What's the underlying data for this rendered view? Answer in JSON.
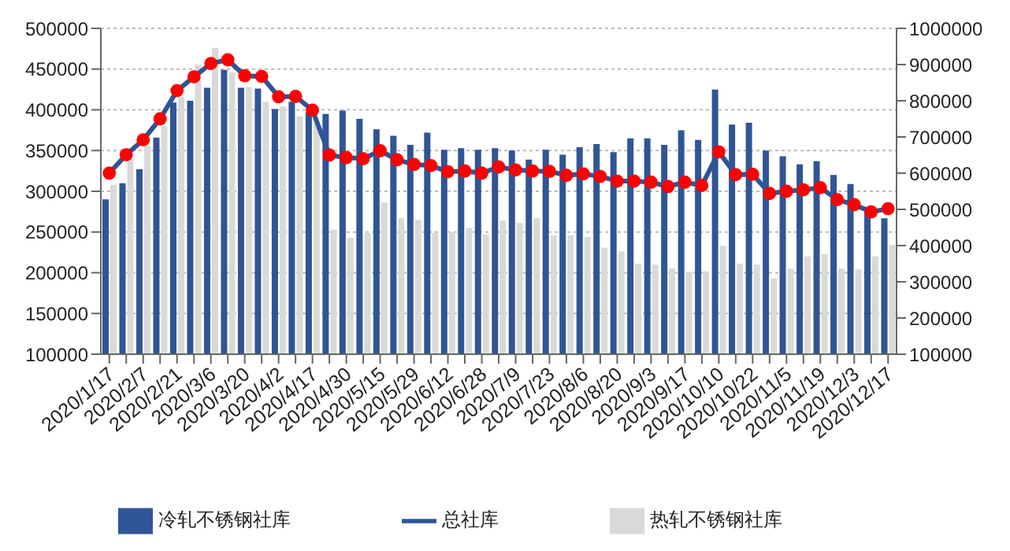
{
  "chart_data": {
    "type": "bar",
    "categories": [
      "2020/1/17",
      null,
      "2020/2/7",
      null,
      "2020/2/21",
      null,
      "2020/3/6",
      null,
      "2020/3/20",
      null,
      "2020/4/2",
      null,
      "2020/4/17",
      null,
      "2020/4/30",
      null,
      "2020/5/15",
      null,
      "2020/5/29",
      null,
      "2020/6/12",
      null,
      "2020/6/28",
      null,
      "2020/7/9",
      null,
      "2020/7/23",
      null,
      "2020/8/6",
      null,
      "2020/8/20",
      null,
      "2020/9/3",
      null,
      "2020/9/17",
      null,
      "2020/10/10",
      null,
      "2020/10/22",
      null,
      "2020/11/5",
      null,
      "2020/11/19",
      null,
      "2020/12/3",
      null,
      "2020/12/17"
    ],
    "series": [
      {
        "name": "冷轧不锈钢社库",
        "color": "#2f5597",
        "values": [
          290000,
          310000,
          327000,
          366000,
          409000,
          411000,
          427000,
          449000,
          427000,
          426000,
          401000,
          410000,
          397000,
          395000,
          399000,
          389000,
          376000,
          368000,
          357000,
          372000,
          351000,
          353000,
          351000,
          353000,
          350000,
          339000,
          351000,
          345000,
          354000,
          358000,
          348000,
          365000,
          365000,
          357000,
          375000,
          363000,
          425000,
          382000,
          384000,
          350000,
          343000,
          333000,
          337000,
          320000,
          309000,
          281000,
          267000
        ]
      },
      {
        "name": "热轧不锈钢社库",
        "color": "#d9d9d9",
        "values": [
          308000,
          340000,
          356000,
          380000,
          416000,
          455000,
          476000,
          446000,
          428000,
          410000,
          404000,
          392000,
          386000,
          253000,
          243000,
          249000,
          286000,
          267000,
          265000,
          249000,
          250000,
          255000,
          247000,
          264000,
          261000,
          267000,
          246000,
          246000,
          244000,
          231000,
          226000,
          211000,
          210000,
          205000,
          201000,
          202000,
          233000,
          211000,
          210000,
          193000,
          205000,
          220000,
          223000,
          205000,
          204000,
          220000,
          234000
        ]
      },
      {
        "name": "总社库",
        "type": "line",
        "axis": "y2",
        "color": "#ff0000",
        "values": [
          600000,
          651000,
          692000,
          750000,
          828000,
          866000,
          903000,
          913000,
          869000,
          867000,
          811000,
          812000,
          774000,
          650000,
          643000,
          640000,
          662000,
          637000,
          624000,
          621000,
          604000,
          606000,
          600000,
          617000,
          609000,
          606000,
          605000,
          594000,
          598000,
          591000,
          578000,
          578000,
          575000,
          563000,
          575000,
          566000,
          659000,
          596000,
          597000,
          544000,
          550000,
          554000,
          560000,
          527000,
          513000,
          493000,
          502000
        ]
      }
    ],
    "ylim": [
      100000,
      500000
    ],
    "yticks": [
      100000,
      150000,
      200000,
      250000,
      300000,
      350000,
      400000,
      450000,
      500000
    ],
    "y2lim": [
      100000,
      1000000
    ],
    "y2ticks": [
      100000,
      200000,
      300000,
      400000,
      500000,
      600000,
      700000,
      800000,
      900000,
      1000000
    ],
    "grid": "y",
    "legend": "bottom",
    "marker": "circle"
  }
}
